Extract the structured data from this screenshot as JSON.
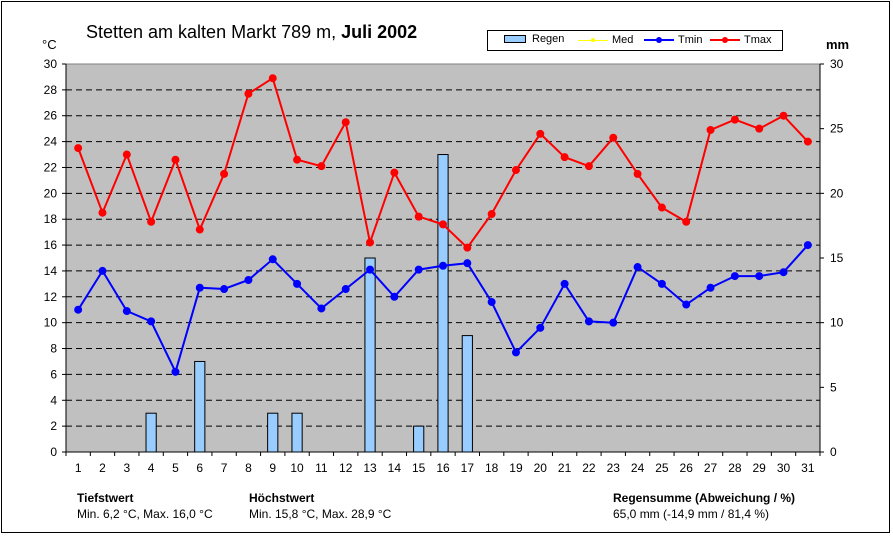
{
  "title": {
    "prefix": "Stetten am kalten Markt  789 m,",
    "bold": "Juli 2002"
  },
  "units": {
    "left": "°C",
    "right": "mm"
  },
  "legend": {
    "rain": "Regen",
    "med": "Med",
    "tmin": "Tmin",
    "tmax": "Tmax"
  },
  "colors": {
    "plot_bg": "#c0c0c0",
    "rain": "#99ccff",
    "tmin": "#0000ff",
    "tmax": "#ff0000",
    "med": "#ffff00"
  },
  "footer": {
    "tief_head": "Tiefstwert",
    "tief_text": "Min. 6,2 °C,  Max. 16,0 °C",
    "hoch_head": "Höchstwert",
    "hoch_text": "Min. 15,8 °C,  Max. 28,9 °C",
    "regen_head": "Regensumme (Abweichung  / %)",
    "regen_text": "65,0 mm (-14,9 mm / 81,4 %)"
  },
  "chart_data": {
    "type": "bar+line",
    "categories": [
      "1",
      "2",
      "3",
      "4",
      "5",
      "6",
      "7",
      "8",
      "9",
      "10",
      "11",
      "12",
      "13",
      "14",
      "15",
      "16",
      "17",
      "18",
      "19",
      "20",
      "21",
      "22",
      "23",
      "24",
      "25",
      "26",
      "27",
      "28",
      "29",
      "30",
      "31"
    ],
    "y_left": {
      "label": "°C",
      "lim": [
        0,
        30
      ],
      "ticks": [
        0,
        2,
        4,
        6,
        8,
        10,
        12,
        14,
        16,
        18,
        20,
        22,
        24,
        26,
        28,
        30
      ]
    },
    "y_right": {
      "label": "mm",
      "lim": [
        0,
        30
      ],
      "ticks": [
        0,
        5,
        10,
        15,
        20,
        25,
        30
      ]
    },
    "grid": "horizontal dashed",
    "legend_position": "top-right",
    "series": [
      {
        "name": "Regen",
        "kind": "bar",
        "axis": "right",
        "values": [
          0,
          0,
          0,
          3,
          0,
          7,
          0,
          0,
          3,
          3,
          0,
          0,
          15,
          0,
          2,
          23,
          9,
          0,
          0,
          0,
          0,
          0,
          0,
          0,
          0,
          0,
          0,
          0,
          0,
          0,
          0
        ]
      },
      {
        "name": "Tmin",
        "kind": "line",
        "axis": "left",
        "values": [
          11.0,
          14.0,
          10.9,
          10.1,
          6.2,
          12.7,
          12.6,
          13.3,
          14.9,
          13.0,
          11.1,
          12.6,
          14.1,
          12.0,
          14.1,
          14.4,
          14.6,
          11.6,
          7.7,
          9.6,
          13.0,
          10.1,
          10.0,
          14.3,
          13.0,
          11.4,
          12.7,
          13.6,
          13.6,
          13.9,
          16.0
        ]
      },
      {
        "name": "Tmax",
        "kind": "line",
        "axis": "left",
        "values": [
          23.5,
          18.5,
          23.0,
          17.8,
          22.6,
          17.2,
          21.5,
          27.7,
          28.9,
          22.6,
          22.1,
          25.5,
          16.2,
          21.6,
          18.2,
          17.6,
          15.8,
          18.4,
          21.8,
          24.6,
          22.8,
          22.1,
          24.3,
          21.5,
          18.9,
          17.8,
          24.9,
          25.7,
          25.0,
          26.0,
          24.0
        ]
      }
    ]
  }
}
